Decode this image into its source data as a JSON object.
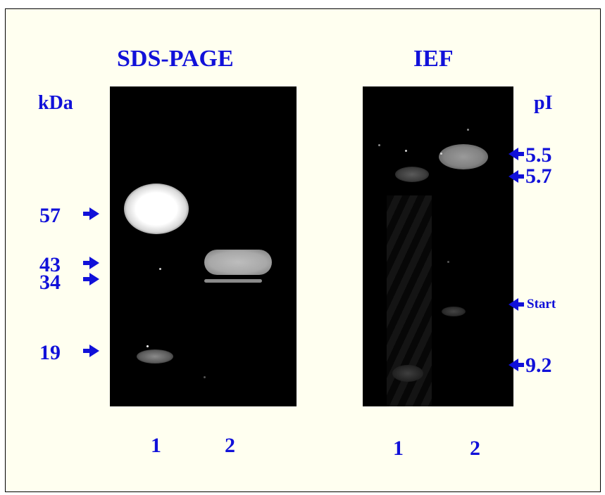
{
  "sds_page": {
    "title": "SDS-PAGE",
    "unit": "kDa",
    "markers": [
      "57",
      "43",
      "34",
      "19"
    ],
    "lanes": [
      "1",
      "2"
    ]
  },
  "ief": {
    "title": "IEF",
    "unit": "pI",
    "markers": [
      "5.5",
      "5.7",
      "Start",
      "9.2"
    ],
    "lanes": [
      "1",
      "2"
    ]
  },
  "colors": {
    "label": "#1111d9",
    "gel": "#000000",
    "background": "#fffff0"
  }
}
